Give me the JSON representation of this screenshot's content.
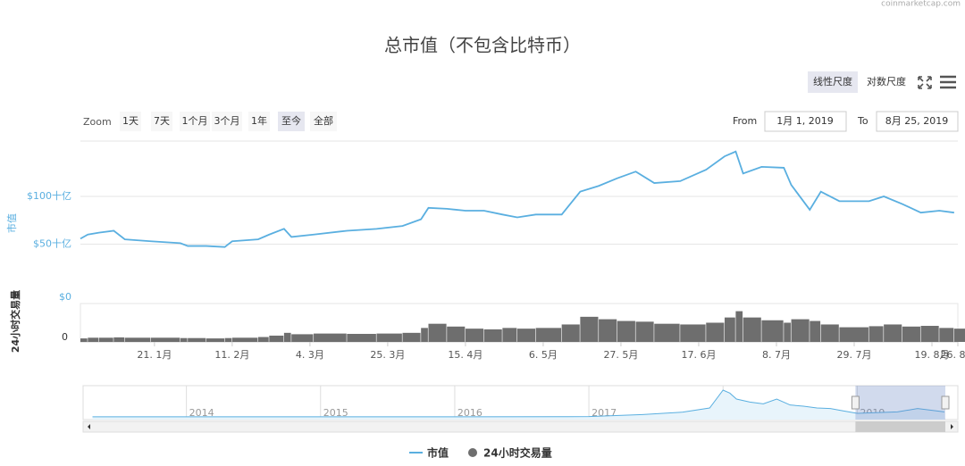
{
  "watermark": "coinmarketcap.com",
  "controls": {
    "zoom_label": "Zoom",
    "zoom_buttons": [
      "1天",
      "7天",
      "1个月",
      "3个月",
      "1年",
      "至今",
      "全部"
    ],
    "zoom_selected": 5,
    "from_label": "From",
    "from_value": "1月 1, 2019",
    "to_label": "To",
    "to_value": "8月 25, 2019",
    "scale_buttons": [
      "线性尺度",
      "对数尺度"
    ],
    "scale_selected": 0
  },
  "chart_data": {
    "type": "line",
    "title": "总市值（不包含比特币）",
    "y_label": "市值",
    "y2_label": "24小时交易量",
    "y2_top_label": "$0",
    "x": [
      "2019-01-01",
      "2019-01-03",
      "2019-01-06",
      "2019-01-10",
      "2019-01-13",
      "2019-01-20",
      "2019-01-28",
      "2019-01-30",
      "2019-02-04",
      "2019-02-09",
      "2019-02-11",
      "2019-02-18",
      "2019-02-21",
      "2019-02-25",
      "2019-02-27",
      "2019-03-05",
      "2019-03-14",
      "2019-03-22",
      "2019-03-29",
      "2019-04-03",
      "2019-04-05",
      "2019-04-10",
      "2019-04-15",
      "2019-04-20",
      "2019-04-25",
      "2019-04-29",
      "2019-05-04",
      "2019-05-11",
      "2019-05-16",
      "2019-05-21",
      "2019-05-26",
      "2019-05-31",
      "2019-06-05",
      "2019-06-12",
      "2019-06-19",
      "2019-06-24",
      "2019-06-27",
      "2019-06-29",
      "2019-07-04",
      "2019-07-10",
      "2019-07-12",
      "2019-07-17",
      "2019-07-20",
      "2019-07-25",
      "2019-08-02",
      "2019-08-06",
      "2019-08-11",
      "2019-08-16",
      "2019-08-21",
      "2019-08-25"
    ],
    "series": [
      {
        "name": "市值",
        "color": "#5aafe0",
        "values": [
          55.7,
          60,
          62,
          64,
          55,
          53,
          51,
          48,
          48,
          47,
          53,
          55,
          60,
          66,
          57.5,
          60,
          64,
          66,
          69,
          76,
          88,
          87,
          85,
          85,
          81,
          78,
          81,
          81,
          105,
          111,
          119,
          126,
          114,
          116,
          128,
          142,
          147,
          124,
          131,
          130,
          112,
          86,
          105,
          95,
          95,
          100,
          92,
          83,
          85,
          83
        ]
      },
      {
        "name": "24小时交易量",
        "color": "#6e6e6e",
        "axis": "y2",
        "values": [
          10,
          12,
          12,
          13,
          12,
          12,
          11,
          11,
          10,
          11,
          12,
          14,
          18,
          26,
          22,
          24,
          23,
          24,
          26,
          40,
          52,
          44,
          38,
          36,
          40,
          38,
          40,
          50,
          72,
          65,
          60,
          58,
          52,
          50,
          55,
          70,
          88,
          70,
          62,
          55,
          65,
          60,
          50,
          42,
          45,
          50,
          44,
          46,
          40,
          38
        ]
      }
    ],
    "xlim": [
      "2019-01-01",
      "2019-08-26"
    ],
    "xticks": [
      {
        "value": "2019-01-21",
        "label": "21. 1月"
      },
      {
        "value": "2019-02-11",
        "label": "11. 2月"
      },
      {
        "value": "2019-03-04",
        "label": "4. 3月"
      },
      {
        "value": "2019-03-25",
        "label": "25. 3月"
      },
      {
        "value": "2019-04-15",
        "label": "15. 4月"
      },
      {
        "value": "2019-05-06",
        "label": "6. 5月"
      },
      {
        "value": "2019-05-27",
        "label": "27. 5月"
      },
      {
        "value": "2019-06-17",
        "label": "17. 6月"
      },
      {
        "value": "2019-07-08",
        "label": "8. 7月"
      },
      {
        "value": "2019-07-29",
        "label": "29. 7月"
      },
      {
        "value": "2019-08-19",
        "label": "19. 8月"
      },
      {
        "value": "2019-08-26",
        "label": "26. 8月"
      }
    ],
    "ylim": [
      42,
      158
    ],
    "yticks": [
      {
        "value": 50,
        "label": "$50十亿"
      },
      {
        "value": 100,
        "label": "$100十亿"
      }
    ],
    "y2lim": [
      0,
      110
    ],
    "y2ticks": [
      0
    ],
    "grid": true,
    "navigator": {
      "x": [
        2013.3,
        2014,
        2015,
        2016,
        2017,
        2017.4,
        2017.7,
        2017.9,
        2018.0,
        2018.05,
        2018.1,
        2018.2,
        2018.3,
        2018.4,
        2018.5,
        2018.6,
        2018.7,
        2018.8,
        2018.9,
        2019.0,
        2019.3,
        2019.45,
        2019.65
      ],
      "values": [
        1,
        2,
        1,
        2,
        5,
        40,
        80,
        150,
        450,
        400,
        300,
        250,
        220,
        300,
        200,
        180,
        150,
        140,
        100,
        60,
        85,
        140,
        85
      ],
      "xlim": [
        2013.23,
        2019.75
      ],
      "ylim": [
        0,
        480
      ],
      "xticks": [
        2014,
        2015,
        2016,
        2017,
        2018,
        2019
      ]
    }
  }
}
